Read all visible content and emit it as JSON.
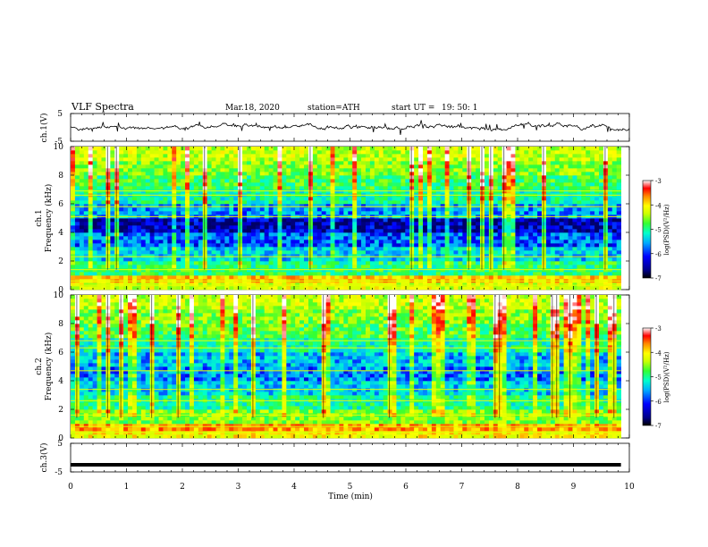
{
  "header": {
    "title": "VLF  Spectra",
    "date": "Mar.18, 2020",
    "station": "station=ATH",
    "start_label": "start  UT  =",
    "start_time": "19: 50: 1"
  },
  "colors": {
    "colormap": [
      "#000066",
      "#0000ff",
      "#00aaff",
      "#00ffcc",
      "#33ff33",
      "#ccff00",
      "#ffff00",
      "#ff8800",
      "#ff0000",
      "#ffffff"
    ],
    "trace": "#000000"
  },
  "chart_data": [
    {
      "type": "line",
      "name": "channel-1-waveform",
      "ylabel": "ch.1(V)",
      "ylim": [
        -5,
        5
      ],
      "y_ticks": [
        "5",
        "-5"
      ],
      "x_range": [
        0,
        10
      ],
      "baseline": 0,
      "noise_amplitude": 0.8,
      "grid": false
    },
    {
      "type": "heatmap",
      "name": "channel-1-spectrogram",
      "ylabel": "ch.1\nFrequency (kHz)",
      "xlim": [
        0,
        9.85
      ],
      "ylim": [
        0,
        10
      ],
      "y_ticks": [
        "0",
        "2",
        "4",
        "6",
        "8",
        "10"
      ],
      "colorbar": {
        "label": "log(PSD)(V²/Hz)",
        "ticks": [
          "-3",
          "-4",
          "-5",
          "-6",
          "-7"
        ],
        "range": [
          -7,
          -3
        ]
      },
      "bands_khz": [
        {
          "from": 0.0,
          "to": 0.5,
          "level": -4.6
        },
        {
          "from": 0.5,
          "to": 0.9,
          "level": -4.2
        },
        {
          "from": 0.9,
          "to": 2.0,
          "level": -5.4
        },
        {
          "from": 2.0,
          "to": 3.0,
          "level": -5.9
        },
        {
          "from": 3.0,
          "to": 4.0,
          "level": -6.3
        },
        {
          "from": 4.0,
          "to": 5.0,
          "level": -6.8
        },
        {
          "from": 5.0,
          "to": 6.0,
          "level": -6.1
        },
        {
          "from": 6.0,
          "to": 7.0,
          "level": -5.6
        },
        {
          "from": 7.0,
          "to": 8.0,
          "level": -5.3
        },
        {
          "from": 8.0,
          "to": 9.0,
          "level": -5.0
        },
        {
          "from": 9.0,
          "to": 10.0,
          "level": -4.7
        }
      ],
      "lines_khz": [
        0.3,
        0.6,
        1.4,
        2.3,
        5.1,
        5.8,
        6.6,
        6.9
      ]
    },
    {
      "type": "heatmap",
      "name": "channel-2-spectrogram",
      "ylabel": "ch.2\nFrequency (kHz)",
      "xlim": [
        0,
        9.85
      ],
      "ylim": [
        0,
        10
      ],
      "y_ticks": [
        "0",
        "2",
        "4",
        "6",
        "8",
        "10"
      ],
      "colorbar": {
        "label": "log(PSD)(V²/Hz)",
        "ticks": [
          "-3",
          "-4",
          "-5",
          "-6",
          "-7"
        ],
        "range": [
          -7,
          -3
        ]
      },
      "bands_khz": [
        {
          "from": 0.0,
          "to": 0.5,
          "level": -4.4
        },
        {
          "from": 0.5,
          "to": 1.0,
          "level": -4.0
        },
        {
          "from": 1.0,
          "to": 2.0,
          "level": -5.0
        },
        {
          "from": 2.0,
          "to": 3.0,
          "level": -5.5
        },
        {
          "from": 3.0,
          "to": 4.0,
          "level": -5.9
        },
        {
          "from": 4.0,
          "to": 5.0,
          "level": -6.2
        },
        {
          "from": 5.0,
          "to": 6.0,
          "level": -6.0
        },
        {
          "from": 6.0,
          "to": 7.0,
          "level": -5.6
        },
        {
          "from": 7.0,
          "to": 8.0,
          "level": -5.2
        },
        {
          "from": 8.0,
          "to": 9.0,
          "level": -5.0
        },
        {
          "from": 9.0,
          "to": 10.0,
          "level": -4.7
        }
      ],
      "lines_khz": [
        0.4,
        0.8,
        1.6,
        2.6,
        3.4,
        4.7,
        6.3,
        6.8
      ]
    },
    {
      "type": "line",
      "name": "channel-3-waveform",
      "ylabel": "ch.3(V)",
      "ylim": [
        -5,
        5
      ],
      "y_ticks": [
        "5",
        "-5"
      ],
      "x_range": [
        0,
        9.85
      ],
      "baseline": -2.5,
      "grid": false
    }
  ],
  "xaxis": {
    "label": "Time  (min)",
    "ticks": [
      "0",
      "1",
      "2",
      "3",
      "4",
      "5",
      "6",
      "7",
      "8",
      "9",
      "10"
    ],
    "range": [
      0,
      10
    ]
  }
}
